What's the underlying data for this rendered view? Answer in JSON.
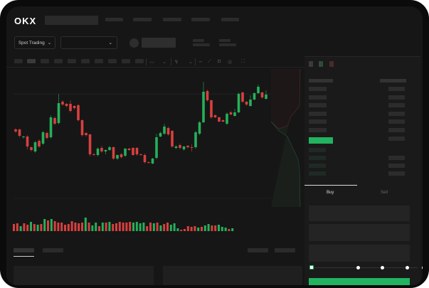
{
  "header": {
    "logo": "OKX"
  },
  "toolbar": {
    "market_dropdown": "Spot Trading",
    "pair_dropdown": ""
  },
  "colors": {
    "up": "#25b05a",
    "down": "#d8403f",
    "accent": "#23b260",
    "background": "#161616"
  },
  "icons": [
    "chevron-down-icon",
    "line-chart-icon",
    "ruler-icon",
    "camera-icon",
    "settings-icon",
    "fullscreen-icon",
    "orderbook-both-icon",
    "orderbook-buy-icon",
    "orderbook-sell-icon"
  ],
  "order_form": {
    "tabs": [
      "Buy",
      "Sell"
    ],
    "active_tab": "Buy",
    "slider_value_percent": 0,
    "slider_marks": [
      0,
      25,
      50,
      75,
      100
    ]
  },
  "chart_data": {
    "type": "candlestick",
    "ohlc": [
      [
        68,
        70,
        63,
        65
      ],
      [
        68,
        69,
        57,
        59
      ],
      [
        57,
        59,
        55,
        58
      ],
      [
        58,
        60,
        40,
        44
      ],
      [
        43,
        44,
        37,
        39
      ],
      [
        37,
        52,
        35,
        50
      ],
      [
        52,
        54,
        42,
        44
      ],
      [
        48,
        66,
        46,
        64
      ],
      [
        63,
        65,
        54,
        56
      ],
      [
        57,
        88,
        55,
        85
      ],
      [
        84,
        86,
        74,
        76
      ],
      [
        77,
        118,
        75,
        105
      ],
      [
        107,
        109,
        101,
        103
      ],
      [
        104,
        105,
        99,
        101
      ],
      [
        104,
        109,
        92,
        94
      ],
      [
        101,
        102,
        96,
        98
      ],
      [
        102,
        104,
        79,
        81
      ],
      [
        81,
        82,
        58,
        60
      ],
      [
        63,
        64,
        58,
        60
      ],
      [
        61,
        62,
        30,
        33
      ],
      [
        33,
        35,
        31,
        32
      ],
      [
        32,
        43,
        30,
        41
      ],
      [
        42,
        45,
        35,
        37
      ],
      [
        37,
        40,
        33,
        39
      ],
      [
        39,
        45,
        38,
        43
      ],
      [
        43,
        44,
        25,
        27
      ],
      [
        27,
        33,
        25,
        32
      ],
      [
        33,
        35,
        27,
        29
      ],
      [
        31,
        42,
        29,
        41
      ],
      [
        41,
        42,
        38,
        39
      ],
      [
        42,
        43,
        31,
        32
      ],
      [
        42,
        43,
        31,
        33
      ],
      [
        33,
        34,
        31,
        32
      ],
      [
        32,
        34,
        20,
        22
      ],
      [
        22,
        23,
        20,
        21
      ],
      [
        20,
        28,
        19,
        27
      ],
      [
        28,
        62,
        26,
        57
      ],
      [
        58,
        65,
        57,
        63
      ],
      [
        62,
        76,
        60,
        72
      ],
      [
        70,
        72,
        59,
        61
      ],
      [
        66,
        67,
        42,
        44
      ],
      [
        42,
        46,
        40,
        44
      ],
      [
        46,
        48,
        40,
        42
      ],
      [
        40,
        45,
        38,
        44
      ],
      [
        45,
        46,
        41,
        43
      ],
      [
        43,
        47,
        37,
        42
      ],
      [
        43,
        66,
        41,
        64
      ],
      [
        62,
        80,
        60,
        78
      ],
      [
        78,
        135,
        77,
        121
      ],
      [
        122,
        124,
        107,
        109
      ],
      [
        109,
        110,
        83,
        85
      ],
      [
        88,
        89,
        84,
        85
      ],
      [
        85,
        86,
        78,
        79
      ],
      [
        81,
        82,
        78,
        79
      ],
      [
        76,
        92,
        74,
        90
      ],
      [
        92,
        94,
        88,
        89
      ],
      [
        87,
        97,
        86,
        92
      ],
      [
        92,
        120,
        91,
        118
      ],
      [
        120,
        121,
        105,
        107
      ],
      [
        107,
        108,
        101,
        103
      ],
      [
        101,
        116,
        100,
        110
      ],
      [
        110,
        120,
        109,
        119
      ],
      [
        119,
        131,
        118,
        128
      ],
      [
        120,
        121,
        111,
        113
      ],
      [
        111,
        123,
        110,
        117
      ]
    ],
    "volume": [
      10,
      11,
      7,
      11,
      9,
      13,
      10,
      9,
      10,
      17,
      15,
      17,
      14,
      12,
      12,
      9,
      10,
      14,
      12,
      11,
      12,
      19,
      12,
      8,
      12,
      7,
      12,
      12,
      13,
      10,
      11,
      13,
      12,
      12,
      13,
      12,
      13,
      11,
      12,
      7,
      12,
      11,
      12,
      8,
      10,
      12,
      9,
      11,
      4,
      2,
      3,
      7,
      6,
      7,
      5,
      6,
      8,
      10,
      8,
      8,
      9,
      6,
      5,
      3,
      4
    ]
  }
}
